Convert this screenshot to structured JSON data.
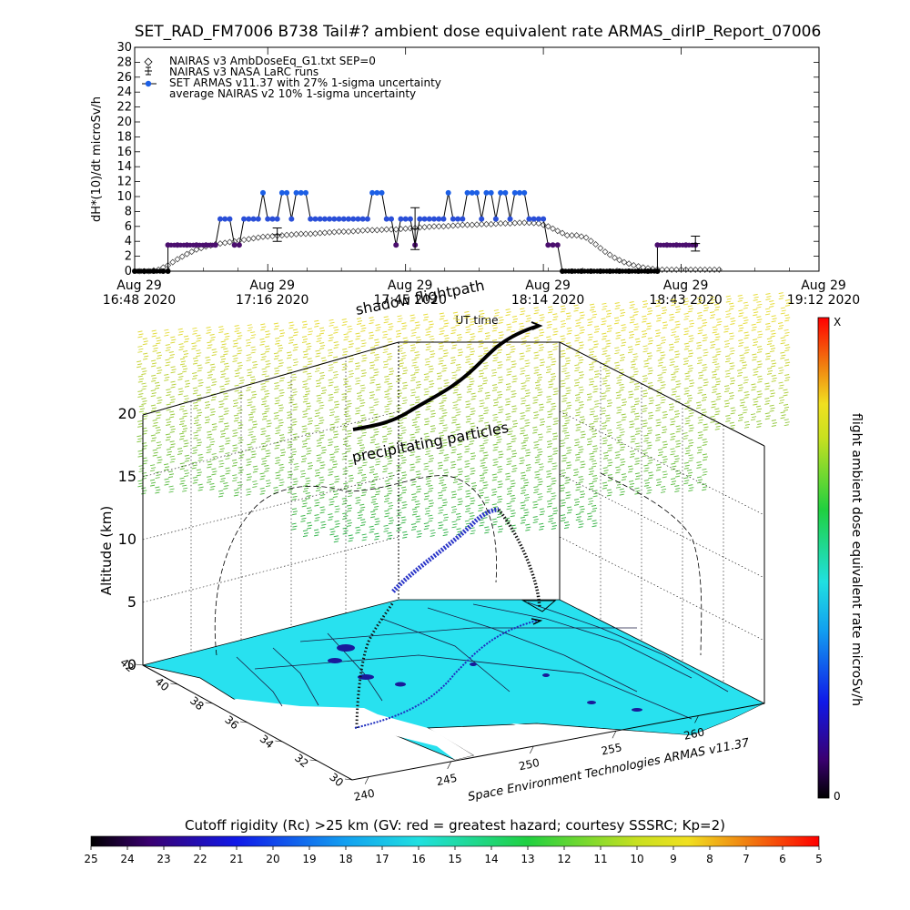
{
  "header": {
    "title": "SET_RAD_FM7006  B738 Tail#? ambient dose equivalent rate ARMAS_dirIP_Report_07006"
  },
  "timeplot": {
    "ylabel": "dH*(10)/dt microSv/h",
    "xlabel": "UT time",
    "legend": [
      "NAIRAS v3 AmbDoseEq_G1.txt SEP=0",
      "NAIRAS v3 NASA LaRC runs",
      "SET ARMAS v11.37 with 27% 1-sigma uncertainty",
      "average NAIRAS v2 10% 1-sigma uncertainty"
    ]
  },
  "panel3d": {
    "zlabel": "Altitude (km)",
    "shadow_label": "shadow flightpath",
    "particles_label": "precipitating particles",
    "credit": "Space Environment Technologies ARMAS v11.37",
    "z_ticks": [
      "0",
      "5",
      "10",
      "15",
      "20"
    ],
    "lat_ticks": [
      "42",
      "40",
      "38",
      "36",
      "34",
      "32",
      "30"
    ],
    "lon_ticks": [
      "240",
      "245",
      "250",
      "255",
      "260"
    ]
  },
  "colorbar_v": {
    "label": "flight ambient dose equivalent rate microSv/h",
    "top": "X",
    "bottom": "0"
  },
  "colorbar_h": {
    "label": "Cutoff rigidity (Rc) >25 km (GV: red = greatest hazard; courtesy SSSRC; Kp=2)",
    "ticks": [
      "25",
      "24",
      "23",
      "22",
      "21",
      "20",
      "19",
      "18",
      "17",
      "16",
      "15",
      "14",
      "13",
      "12",
      "11",
      "10",
      "9",
      "8",
      "7",
      "6",
      "5"
    ]
  },
  "colors": {
    "armas": "#1c5fe6",
    "armas_low": "#4b0f6e",
    "ground": "#28e1ef",
    "particles_high": "#e6e63c",
    "particles_low": "#38c83c"
  },
  "chart_data": [
    {
      "type": "line",
      "ylim": [
        0,
        30
      ],
      "yticks": [
        0,
        2,
        4,
        6,
        8,
        10,
        12,
        14,
        16,
        18,
        20,
        22,
        24,
        26,
        28,
        30
      ],
      "xlim_min": [
        0,
        144
      ],
      "xticks": [
        {
          "min": 0,
          "label": [
            "Aug 29",
            "16:48 2020"
          ]
        },
        {
          "min": 28,
          "label": [
            "Aug 29",
            "17:16 2020"
          ]
        },
        {
          "min": 57,
          "label": [
            "Aug 29",
            "17:45 2020"
          ]
        },
        {
          "min": 86,
          "label": [
            "Aug 29",
            "18:14 2020"
          ]
        },
        {
          "min": 115,
          "label": [
            "Aug 29",
            "18:43 2020"
          ]
        },
        {
          "min": 144,
          "label": [
            "Aug 29",
            "19:12 2020"
          ]
        }
      ],
      "series": [
        {
          "name": "NAIRAS v3 AmbDoseEq_G1.txt SEP=0",
          "marker": "diamond",
          "x_min": [
            1,
            3,
            5,
            7,
            9,
            11,
            13,
            15,
            17,
            19,
            21,
            23,
            25,
            27,
            29,
            31,
            33,
            35,
            37,
            39,
            41,
            43,
            45,
            47,
            49,
            51,
            53,
            55,
            57,
            59,
            61,
            63,
            65,
            67,
            69,
            71,
            73,
            75,
            77,
            79,
            81,
            83,
            85,
            87,
            89,
            91,
            93,
            95,
            97,
            99,
            101,
            103,
            105,
            107,
            109,
            111,
            113,
            115,
            117,
            119,
            121,
            123
          ],
          "y": [
            0,
            0,
            0.2,
            0.8,
            1.6,
            2.3,
            2.9,
            3.3,
            3.6,
            3.8,
            4.0,
            4.2,
            4.4,
            4.6,
            4.7,
            4.8,
            4.9,
            5.0,
            5.0,
            5.1,
            5.2,
            5.3,
            5.3,
            5.4,
            5.5,
            5.5,
            5.6,
            5.6,
            5.7,
            5.8,
            5.9,
            6.0,
            6.0,
            6.1,
            6.2,
            6.2,
            6.3,
            6.3,
            6.4,
            6.4,
            6.5,
            6.5,
            6.4,
            6.0,
            5.4,
            4.8,
            4.8,
            4.5,
            3.6,
            2.6,
            1.8,
            1.2,
            0.8,
            0.5,
            0.3,
            0.2,
            0.2,
            0.2,
            0.2,
            0.2,
            0.2,
            0.2
          ]
        },
        {
          "name": "NAIRAS v3 NASA LaRC runs",
          "marker": "errorbar",
          "x_min": [
            30,
            59,
            118
          ],
          "y": [
            4.9,
            5.7,
            3.7
          ],
          "err": [
            0.9,
            2.8,
            1.0
          ]
        },
        {
          "name": "SET ARMAS v11.37 with 27% 1-sigma uncertainty",
          "marker": "dot",
          "points": [
            [
              0,
              0
            ],
            [
              2,
              0
            ],
            [
              4,
              0
            ],
            [
              6,
              0
            ],
            [
              7,
              0
            ],
            [
              7,
              3.5
            ],
            [
              9,
              3.5
            ],
            [
              11,
              3.5
            ],
            [
              13,
              3.5
            ],
            [
              15,
              3.5
            ],
            [
              17,
              3.5
            ],
            [
              18,
              7
            ],
            [
              19,
              7
            ],
            [
              20,
              7
            ],
            [
              21,
              3.5
            ],
            [
              22,
              3.5
            ],
            [
              23,
              7
            ],
            [
              24,
              7
            ],
            [
              25,
              7
            ],
            [
              26,
              7
            ],
            [
              27,
              10.5
            ],
            [
              28,
              7
            ],
            [
              29,
              7
            ],
            [
              30,
              7
            ],
            [
              31,
              10.5
            ],
            [
              32,
              10.5
            ],
            [
              33,
              7
            ],
            [
              34,
              10.5
            ],
            [
              35,
              10.5
            ],
            [
              36,
              10.5
            ],
            [
              37,
              7
            ],
            [
              38,
              7
            ],
            [
              39,
              7
            ],
            [
              40,
              7
            ],
            [
              41,
              7
            ],
            [
              42,
              7
            ],
            [
              43,
              7
            ],
            [
              44,
              7
            ],
            [
              45,
              7
            ],
            [
              46,
              7
            ],
            [
              47,
              7
            ],
            [
              48,
              7
            ],
            [
              49,
              7
            ],
            [
              50,
              10.5
            ],
            [
              51,
              10.5
            ],
            [
              52,
              10.5
            ],
            [
              53,
              7
            ],
            [
              54,
              7
            ],
            [
              55,
              3.5
            ],
            [
              56,
              7
            ],
            [
              57,
              7
            ],
            [
              58,
              7
            ],
            [
              59,
              3.5
            ],
            [
              60,
              7
            ],
            [
              61,
              7
            ],
            [
              62,
              7
            ],
            [
              63,
              7
            ],
            [
              64,
              7
            ],
            [
              65,
              7
            ],
            [
              66,
              10.5
            ],
            [
              67,
              7
            ],
            [
              68,
              7
            ],
            [
              69,
              7
            ],
            [
              70,
              10.5
            ],
            [
              71,
              10.5
            ],
            [
              72,
              10.5
            ],
            [
              73,
              7
            ],
            [
              74,
              10.5
            ],
            [
              75,
              10.5
            ],
            [
              76,
              7
            ],
            [
              77,
              10.5
            ],
            [
              78,
              10.5
            ],
            [
              79,
              7
            ],
            [
              80,
              10.5
            ],
            [
              81,
              10.5
            ],
            [
              82,
              10.5
            ],
            [
              83,
              7
            ],
            [
              84,
              7
            ],
            [
              85,
              7
            ],
            [
              86,
              7
            ],
            [
              87,
              3.5
            ],
            [
              88,
              3.5
            ],
            [
              89,
              3.5
            ],
            [
              90,
              0
            ],
            [
              92,
              0
            ],
            [
              94,
              0
            ],
            [
              96,
              0
            ],
            [
              98,
              0
            ],
            [
              100,
              0
            ],
            [
              102,
              0
            ],
            [
              104,
              0
            ],
            [
              106,
              0
            ],
            [
              108,
              0
            ],
            [
              110,
              0
            ],
            [
              110,
              3.5
            ],
            [
              112,
              3.5
            ],
            [
              114,
              3.5
            ],
            [
              116,
              3.5
            ],
            [
              118,
              3.5
            ]
          ]
        },
        {
          "name": "average NAIRAS v2 10% 1-sigma uncertainty",
          "marker": "none"
        }
      ]
    },
    {
      "type": "colorbar",
      "title": "flight ambient dose equivalent rate microSv/h",
      "range_labels": [
        "0",
        "X"
      ]
    },
    {
      "type": "colorbar",
      "title": "Cutoff rigidity (Rc) >25 km (GV: red = greatest hazard; courtesy SSSRC; Kp=2)",
      "values": [
        25,
        24,
        23,
        22,
        21,
        20,
        19,
        18,
        17,
        16,
        15,
        14,
        13,
        12,
        11,
        10,
        9,
        8,
        7,
        6,
        5
      ]
    }
  ]
}
